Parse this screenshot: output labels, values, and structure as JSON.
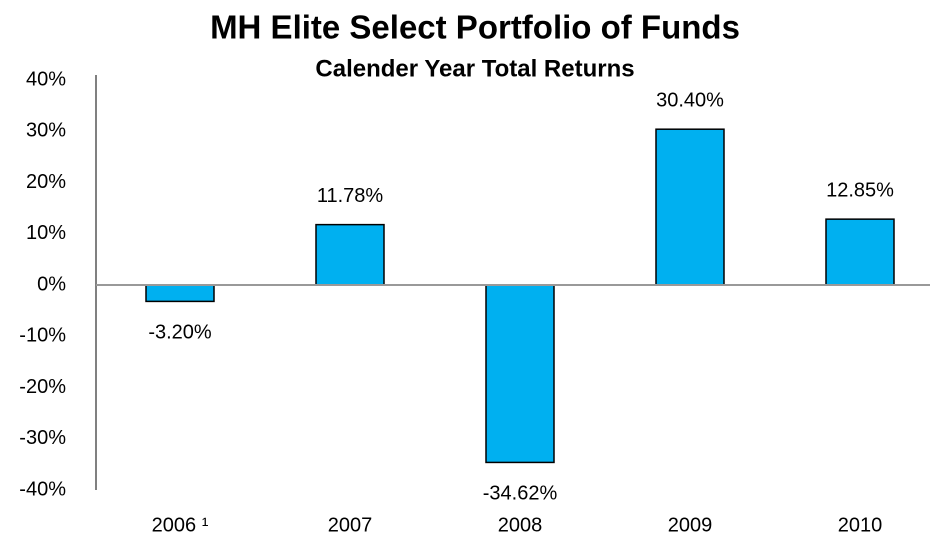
{
  "chart_data": {
    "type": "bar",
    "title": "MH Elite Select Portfolio of Funds",
    "subtitle": "Calender Year Total Returns",
    "categories": [
      "2006 ¹",
      "2007",
      "2008",
      "2009",
      "2010"
    ],
    "values": [
      -3.2,
      11.78,
      -34.62,
      30.4,
      12.85
    ],
    "value_labels": [
      "-3.20%",
      "11.78%",
      "-34.62%",
      "30.40%",
      "12.85%"
    ],
    "color": "#00b0f0",
    "ylim": [
      -40,
      40
    ],
    "yticks": [
      {
        "value": 40,
        "label": "40%"
      },
      {
        "value": 30,
        "label": "30%"
      },
      {
        "value": 20,
        "label": "20%"
      },
      {
        "value": 10,
        "label": "10%"
      },
      {
        "value": 0,
        "label": "0%"
      },
      {
        "value": -10,
        "label": "-10%"
      },
      {
        "value": -20,
        "label": "-20%"
      },
      {
        "value": -30,
        "label": "-30%"
      },
      {
        "value": -40,
        "label": "-40%"
      }
    ],
    "grid": false
  }
}
